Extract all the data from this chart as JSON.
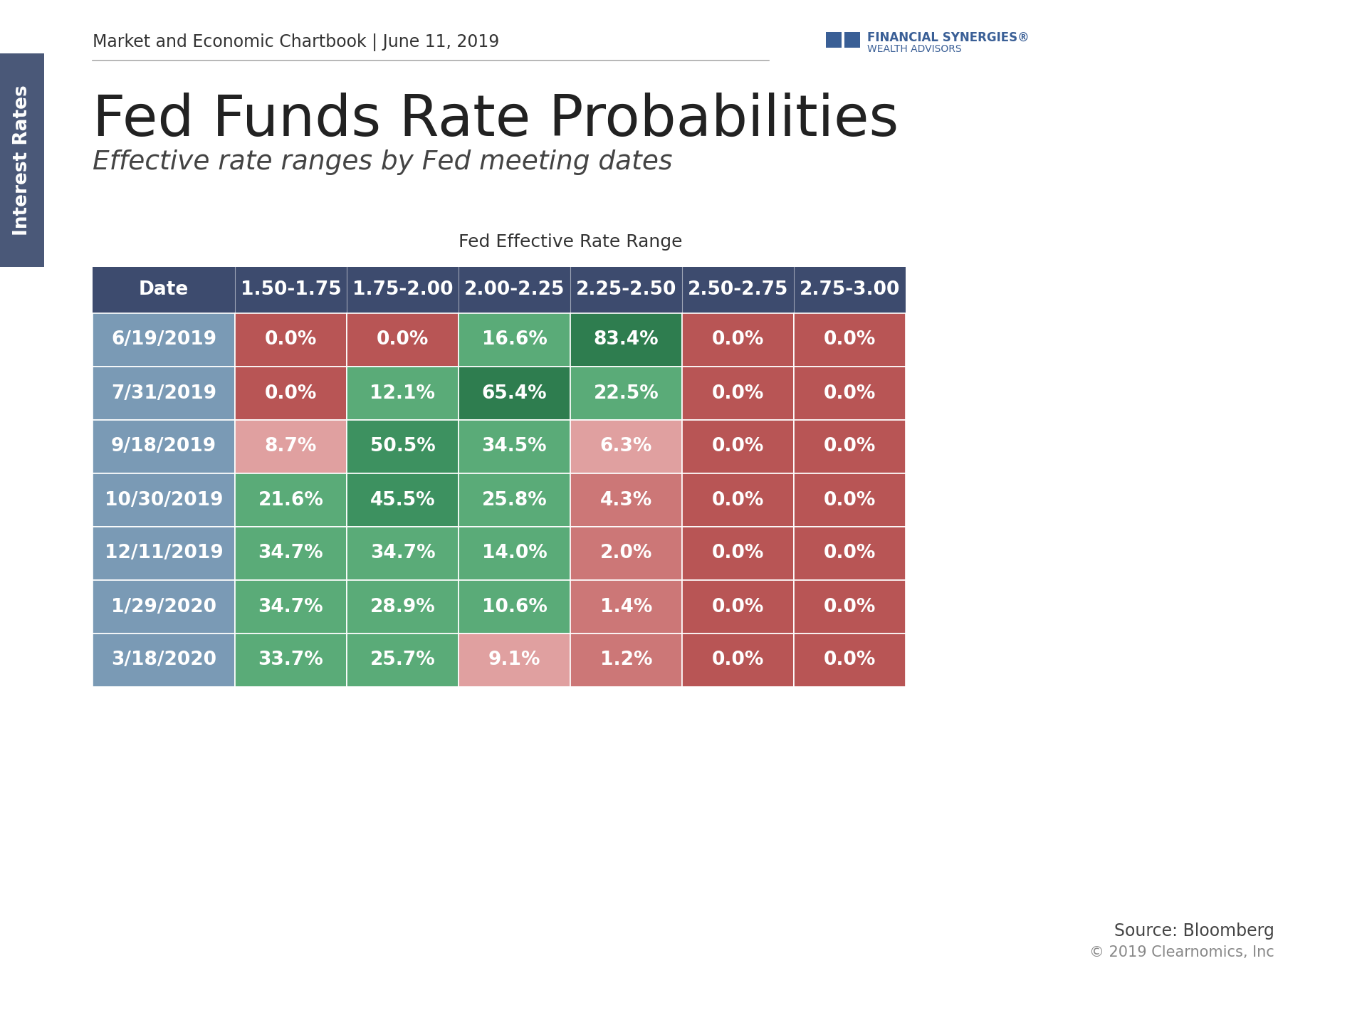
{
  "title": "Fed Funds Rate Probabilities",
  "subtitle": "Effective rate ranges by Fed meeting dates",
  "header_text": "Market and Economic Chartbook | June 11, 2019",
  "table_label": "Fed Effective Rate Range",
  "source": "Source: Bloomberg",
  "copyright": "© 2019 Clearnomics, Inc",
  "columns": [
    "Date",
    "1.50-1.75",
    "1.75-2.00",
    "2.00-2.25",
    "2.25-2.50",
    "2.50-2.75",
    "2.75-3.00"
  ],
  "rows": [
    [
      "6/19/2019",
      "0.0%",
      "0.0%",
      "16.6%",
      "83.4%",
      "0.0%",
      "0.0%"
    ],
    [
      "7/31/2019",
      "0.0%",
      "12.1%",
      "65.4%",
      "22.5%",
      "0.0%",
      "0.0%"
    ],
    [
      "9/18/2019",
      "8.7%",
      "50.5%",
      "34.5%",
      "6.3%",
      "0.0%",
      "0.0%"
    ],
    [
      "10/30/2019",
      "21.6%",
      "45.5%",
      "25.8%",
      "4.3%",
      "0.0%",
      "0.0%"
    ],
    [
      "12/11/2019",
      "34.7%",
      "34.7%",
      "14.0%",
      "2.0%",
      "0.0%",
      "0.0%"
    ],
    [
      "1/29/2020",
      "34.7%",
      "28.9%",
      "10.6%",
      "1.4%",
      "0.0%",
      "0.0%"
    ],
    [
      "3/18/2020",
      "33.7%",
      "25.7%",
      "9.1%",
      "1.2%",
      "0.0%",
      "0.0%"
    ]
  ],
  "values": [
    [
      0.0,
      0.0,
      16.6,
      83.4,
      0.0,
      0.0
    ],
    [
      0.0,
      12.1,
      65.4,
      22.5,
      0.0,
      0.0
    ],
    [
      8.7,
      50.5,
      34.5,
      6.3,
      0.0,
      0.0
    ],
    [
      21.6,
      45.5,
      25.8,
      4.3,
      0.0,
      0.0
    ],
    [
      34.7,
      34.7,
      14.0,
      2.0,
      0.0,
      0.0
    ],
    [
      34.7,
      28.9,
      10.6,
      1.4,
      0.0,
      0.0
    ],
    [
      33.7,
      25.7,
      9.1,
      1.2,
      0.0,
      0.0
    ]
  ],
  "header_bg": "#3d4b6e",
  "header_fg": "#ffffff",
  "date_col_bg": "#7a9ab5",
  "date_col_fg": "#ffffff",
  "green_dark": "#2e7d4f",
  "green_mid": "#3d9160",
  "green_light": "#5aab78",
  "red_dark": "#b85555",
  "red_mid": "#cc7777",
  "red_light": "#e0a0a0",
  "zero_red": "#b85555",
  "sidebar_color": "#4a5878",
  "bg_color": "#ffffff",
  "title_color": "#222222",
  "subtitle_color": "#444444",
  "header_line_color": "#aaaaaa",
  "logo_color": "#3a5f96"
}
